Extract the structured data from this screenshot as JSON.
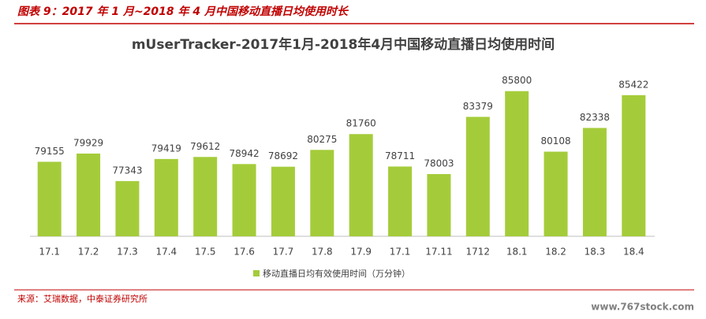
{
  "header": "图表 9：2017 年 1 月~2018 年 4 月中国移动直播日均使用时长",
  "chart_data": {
    "type": "bar",
    "title": "mUserTracker-2017年1月-2018年4月中国移动直播日均使用时间",
    "categories": [
      "17.1",
      "17.2",
      "17.3",
      "17.4",
      "17.5",
      "17.6",
      "17.7",
      "17.8",
      "17.9",
      "17.1",
      "17.11",
      "1712",
      "18.1",
      "18.2",
      "18.3",
      "18.4"
    ],
    "series": [
      {
        "name": "移动直播日均有效使用时间（万分钟）",
        "color": "#a4cc3a",
        "values": [
          79155,
          79929,
          77343,
          79419,
          79612,
          78942,
          78692,
          80275,
          81760,
          78711,
          78003,
          83379,
          85800,
          80108,
          82338,
          85422
        ]
      }
    ],
    "ylim": [
      72150,
      88000
    ]
  },
  "source": "来源：艾瑞数据，中泰证券研究所",
  "watermark": "www.767stock.com"
}
